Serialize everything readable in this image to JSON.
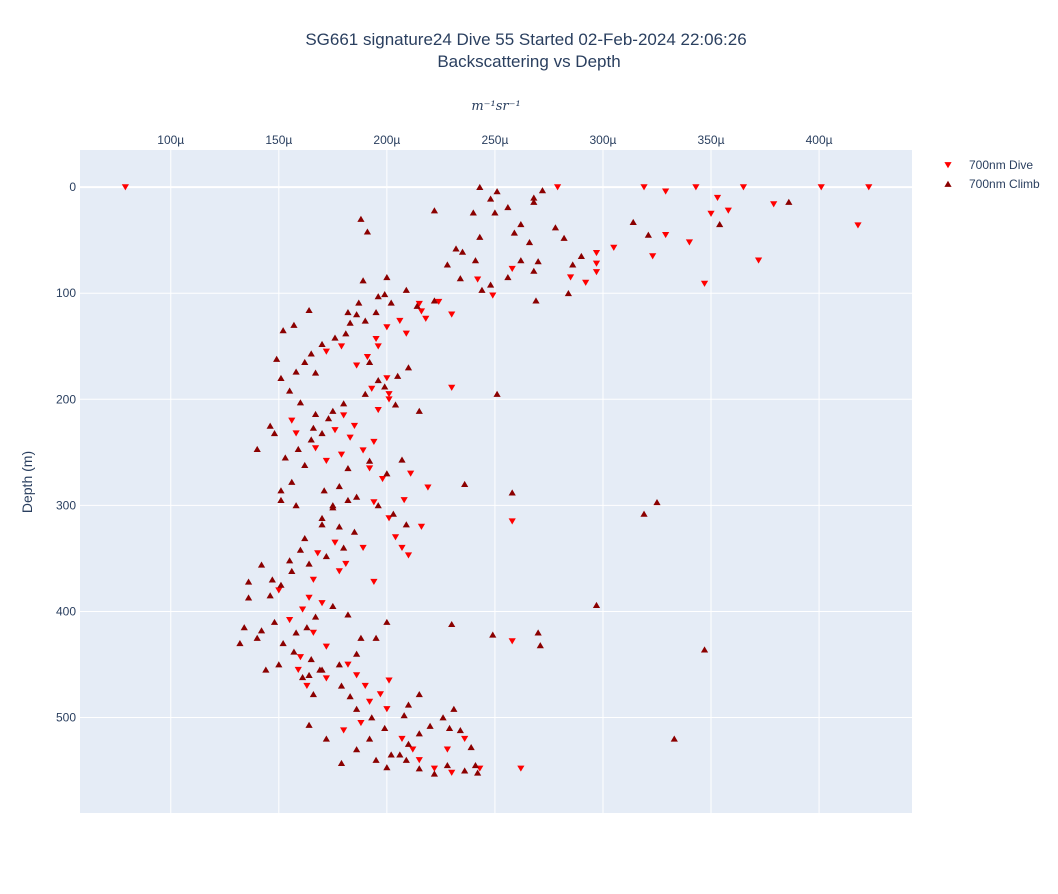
{
  "chart_data": {
    "type": "scatter",
    "title_line1": "SG661 signature24 Dive 55 Started 02-Feb-2024 22:06:26",
    "title_line2": "Backscattering vs Depth",
    "xlabel": "m⁻¹sr⁻¹",
    "ylabel": "Depth (m)",
    "x_range": [
      5.8e-05,
      0.000443
    ],
    "y_range": [
      590,
      -35
    ],
    "y_reversed": true,
    "x_axis_side": "top",
    "x_ticks": [
      0.0001,
      0.00015,
      0.0002,
      0.00025,
      0.0003,
      0.00035,
      0.0004
    ],
    "x_tick_labels": [
      "100µ",
      "150µ",
      "200µ",
      "250µ",
      "300µ",
      "350µ",
      "400µ"
    ],
    "y_ticks": [
      0,
      100,
      200,
      300,
      400,
      500
    ],
    "y_tick_labels": [
      "0",
      "100",
      "200",
      "300",
      "400",
      "500"
    ],
    "grid": true,
    "legend_position": "top-right",
    "series": [
      {
        "name": "700nm Dive",
        "color": "#ff0000",
        "marker": "triangle-down",
        "points": [
          [
            7.9e-05,
            0
          ],
          [
            0.000279,
            0
          ],
          [
            0.000319,
            0
          ],
          [
            0.000343,
            0
          ],
          [
            0.000365,
            0
          ],
          [
            0.000401,
            0
          ],
          [
            0.000423,
            0
          ],
          [
            0.000329,
            4
          ],
          [
            0.000353,
            10
          ],
          [
            0.000358,
            22
          ],
          [
            0.00035,
            25
          ],
          [
            0.000379,
            16
          ],
          [
            0.000418,
            36
          ],
          [
            0.000329,
            45
          ],
          [
            0.00034,
            52
          ],
          [
            0.000323,
            65
          ],
          [
            0.000305,
            57
          ],
          [
            0.000297,
            62
          ],
          [
            0.000297,
            72
          ],
          [
            0.000297,
            80
          ],
          [
            0.000285,
            85
          ],
          [
            0.000292,
            90
          ],
          [
            0.000372,
            69
          ],
          [
            0.000347,
            91
          ],
          [
            0.000258,
            77
          ],
          [
            0.000249,
            102
          ],
          [
            0.000242,
            87
          ],
          [
            0.00023,
            120
          ],
          [
            0.000224,
            108
          ],
          [
            0.000215,
            110
          ],
          [
            0.000216,
            117
          ],
          [
            0.000218,
            124
          ],
          [
            0.000209,
            138
          ],
          [
            0.000206,
            126
          ],
          [
            0.0002,
            132
          ],
          [
            0.000195,
            143
          ],
          [
            0.000191,
            160
          ],
          [
            0.000196,
            150
          ],
          [
            0.000186,
            168
          ],
          [
            0.000179,
            150
          ],
          [
            0.000172,
            155
          ],
          [
            0.0002,
            180
          ],
          [
            0.000193,
            190
          ],
          [
            0.000201,
            195
          ],
          [
            0.000201,
            200
          ],
          [
            0.000196,
            210
          ],
          [
            0.00018,
            215
          ],
          [
            0.000176,
            229
          ],
          [
            0.000185,
            225
          ],
          [
            0.000183,
            236
          ],
          [
            0.000194,
            240
          ],
          [
            0.000189,
            248
          ],
          [
            0.000179,
            252
          ],
          [
            0.000172,
            258
          ],
          [
            0.000167,
            246
          ],
          [
            0.000158,
            232
          ],
          [
            0.000156,
            220
          ],
          [
            0.00023,
            189
          ],
          [
            0.000192,
            265
          ],
          [
            0.000198,
            275
          ],
          [
            0.000219,
            283
          ],
          [
            0.000211,
            270
          ],
          [
            0.000208,
            295
          ],
          [
            0.000194,
            297
          ],
          [
            0.000201,
            312
          ],
          [
            0.000216,
            320
          ],
          [
            0.000204,
            330
          ],
          [
            0.000189,
            340
          ],
          [
            0.00021,
            347
          ],
          [
            0.000207,
            340
          ],
          [
            0.000258,
            315
          ],
          [
            0.000176,
            335
          ],
          [
            0.000168,
            345
          ],
          [
            0.000178,
            362
          ],
          [
            0.000166,
            370
          ],
          [
            0.000164,
            387
          ],
          [
            0.00017,
            392
          ],
          [
            0.000161,
            398
          ],
          [
            0.000155,
            408
          ],
          [
            0.000166,
            420
          ],
          [
            0.000172,
            433
          ],
          [
            0.00016,
            443
          ],
          [
            0.000182,
            450
          ],
          [
            0.000186,
            460
          ],
          [
            0.00019,
            470
          ],
          [
            0.000197,
            478
          ],
          [
            0.000192,
            485
          ],
          [
            0.0002,
            492
          ],
          [
            0.000188,
            505
          ],
          [
            0.00018,
            512
          ],
          [
            0.000207,
            520
          ],
          [
            0.000212,
            530
          ],
          [
            0.000215,
            540
          ],
          [
            0.000222,
            548
          ],
          [
            0.00023,
            552
          ],
          [
            0.000236,
            520
          ],
          [
            0.000228,
            530
          ],
          [
            0.000243,
            548
          ],
          [
            0.000262,
            548
          ],
          [
            0.000258,
            428
          ],
          [
            0.000194,
            372
          ],
          [
            0.000181,
            355
          ],
          [
            0.00015,
            380
          ],
          [
            0.000159,
            455
          ],
          [
            0.000163,
            470
          ],
          [
            0.000172,
            463
          ],
          [
            0.000201,
            465
          ]
        ]
      },
      {
        "name": "700nm Climb",
        "color": "#8b0000",
        "marker": "triangle-up",
        "points": [
          [
            0.000243,
            0
          ],
          [
            0.000251,
            4
          ],
          [
            0.000248,
            11
          ],
          [
            0.00025,
            24
          ],
          [
            0.000256,
            19
          ],
          [
            0.000268,
            10
          ],
          [
            0.000272,
            3
          ],
          [
            0.000268,
            14
          ],
          [
            0.000222,
            22
          ],
          [
            0.00024,
            24
          ],
          [
            0.000262,
            35
          ],
          [
            0.000259,
            43
          ],
          [
            0.000266,
            52
          ],
          [
            0.000278,
            38
          ],
          [
            0.000282,
            48
          ],
          [
            0.00029,
            65
          ],
          [
            0.000286,
            73
          ],
          [
            0.00027,
            70
          ],
          [
            0.000262,
            69
          ],
          [
            0.000268,
            79
          ],
          [
            0.000256,
            85
          ],
          [
            0.000248,
            92
          ],
          [
            0.000244,
            97
          ],
          [
            0.000234,
            86
          ],
          [
            0.000235,
            61
          ],
          [
            0.000243,
            47
          ],
          [
            0.000232,
            58
          ],
          [
            0.000241,
            69
          ],
          [
            0.000228,
            73
          ],
          [
            0.000269,
            107
          ],
          [
            0.000284,
            100
          ],
          [
            0.000314,
            33
          ],
          [
            0.000321,
            45
          ],
          [
            0.000354,
            35
          ],
          [
            0.000386,
            14
          ],
          [
            0.0002,
            85
          ],
          [
            0.000199,
            101
          ],
          [
            0.000189,
            88
          ],
          [
            0.000196,
            103
          ],
          [
            0.000209,
            97
          ],
          [
            0.000222,
            107
          ],
          [
            0.000214,
            112
          ],
          [
            0.000202,
            109
          ],
          [
            0.000195,
            118
          ],
          [
            0.000186,
            120
          ],
          [
            0.00019,
            126
          ],
          [
            0.000183,
            128
          ],
          [
            0.000181,
            138
          ],
          [
            0.000176,
            142
          ],
          [
            0.00017,
            148
          ],
          [
            0.000165,
            157
          ],
          [
            0.000162,
            165
          ],
          [
            0.000167,
            175
          ],
          [
            0.000158,
            174
          ],
          [
            0.000151,
            180
          ],
          [
            0.000155,
            192
          ],
          [
            0.00016,
            203
          ],
          [
            0.000167,
            214
          ],
          [
            0.000173,
            218
          ],
          [
            0.00017,
            232
          ],
          [
            0.000165,
            238
          ],
          [
            0.000159,
            247
          ],
          [
            0.000153,
            255
          ],
          [
            0.000148,
            232
          ],
          [
            0.00014,
            247
          ],
          [
            0.000146,
            225
          ],
          [
            0.000149,
            162
          ],
          [
            0.000152,
            135
          ],
          [
            0.000157,
            130
          ],
          [
            0.000164,
            116
          ],
          [
            0.000182,
            118
          ],
          [
            0.000187,
            109
          ],
          [
            0.000188,
            30
          ],
          [
            0.000191,
            42
          ],
          [
            0.000192,
            165
          ],
          [
            0.000196,
            182
          ],
          [
            0.00021,
            170
          ],
          [
            0.000215,
            211
          ],
          [
            0.000205,
            178
          ],
          [
            0.000199,
            188
          ],
          [
            0.000204,
            205
          ],
          [
            0.00019,
            195
          ],
          [
            0.00018,
            204
          ],
          [
            0.000175,
            211
          ],
          [
            0.000166,
            227
          ],
          [
            0.000162,
            262
          ],
          [
            0.000156,
            278
          ],
          [
            0.000151,
            286
          ],
          [
            0.000151,
            295
          ],
          [
            0.000158,
            300
          ],
          [
            0.000171,
            286
          ],
          [
            0.000175,
            302
          ],
          [
            0.00017,
            318
          ],
          [
            0.000178,
            320
          ],
          [
            0.000185,
            325
          ],
          [
            0.00018,
            340
          ],
          [
            0.000172,
            348
          ],
          [
            0.000164,
            355
          ],
          [
            0.000156,
            362
          ],
          [
            0.000151,
            375
          ],
          [
            0.000147,
            370
          ],
          [
            0.000146,
            385
          ],
          [
            0.000136,
            372
          ],
          [
            0.000136,
            387
          ],
          [
            0.000142,
            356
          ],
          [
            0.000155,
            352
          ],
          [
            0.000162,
            331
          ],
          [
            0.00016,
            342
          ],
          [
            0.00017,
            312
          ],
          [
            0.000175,
            300
          ],
          [
            0.000182,
            295
          ],
          [
            0.000186,
            292
          ],
          [
            0.000178,
            282
          ],
          [
            0.000182,
            265
          ],
          [
            0.000192,
            258
          ],
          [
            0.0002,
            270
          ],
          [
            0.000207,
            257
          ],
          [
            0.000196,
            300
          ],
          [
            0.000203,
            308
          ],
          [
            0.000209,
            318
          ],
          [
            0.000236,
            280
          ],
          [
            0.000251,
            195
          ],
          [
            0.000258,
            288
          ],
          [
            0.000319,
            308
          ],
          [
            0.000325,
            297
          ],
          [
            0.000297,
            394
          ],
          [
            0.00027,
            420
          ],
          [
            0.000271,
            432
          ],
          [
            0.000249,
            422
          ],
          [
            0.00023,
            412
          ],
          [
            0.000347,
            436
          ],
          [
            0.000333,
            520
          ],
          [
            0.0002,
            410
          ],
          [
            0.000188,
            425
          ],
          [
            0.000182,
            403
          ],
          [
            0.000175,
            395
          ],
          [
            0.000167,
            405
          ],
          [
            0.000163,
            415
          ],
          [
            0.000158,
            420
          ],
          [
            0.000152,
            430
          ],
          [
            0.000148,
            410
          ],
          [
            0.000142,
            418
          ],
          [
            0.00014,
            425
          ],
          [
            0.000134,
            415
          ],
          [
            0.000132,
            430
          ],
          [
            0.000144,
            455
          ],
          [
            0.00015,
            450
          ],
          [
            0.000157,
            438
          ],
          [
            0.000165,
            445
          ],
          [
            0.00017,
            455
          ],
          [
            0.000161,
            462
          ],
          [
            0.000166,
            478
          ],
          [
            0.000179,
            470
          ],
          [
            0.000183,
            480
          ],
          [
            0.000186,
            492
          ],
          [
            0.000193,
            500
          ],
          [
            0.000199,
            510
          ],
          [
            0.000192,
            520
          ],
          [
            0.000186,
            530
          ],
          [
            0.000195,
            540
          ],
          [
            0.0002,
            547
          ],
          [
            0.000206,
            535
          ],
          [
            0.00021,
            525
          ],
          [
            0.000215,
            515
          ],
          [
            0.00022,
            508
          ],
          [
            0.000226,
            500
          ],
          [
            0.000231,
            492
          ],
          [
            0.000234,
            512
          ],
          [
            0.000239,
            528
          ],
          [
            0.000241,
            545
          ],
          [
            0.000236,
            550
          ],
          [
            0.000228,
            545
          ],
          [
            0.000222,
            553
          ],
          [
            0.000215,
            548
          ],
          [
            0.000209,
            540
          ],
          [
            0.000202,
            535
          ],
          [
            0.00021,
            488
          ],
          [
            0.000215,
            478
          ],
          [
            0.000208,
            498
          ],
          [
            0.000229,
            510
          ],
          [
            0.000242,
            552
          ],
          [
            0.000164,
            507
          ],
          [
            0.000172,
            520
          ],
          [
            0.000179,
            543
          ],
          [
            0.000164,
            460
          ],
          [
            0.000169,
            455
          ],
          [
            0.000178,
            450
          ],
          [
            0.000186,
            440
          ],
          [
            0.000195,
            425
          ]
        ]
      }
    ]
  }
}
